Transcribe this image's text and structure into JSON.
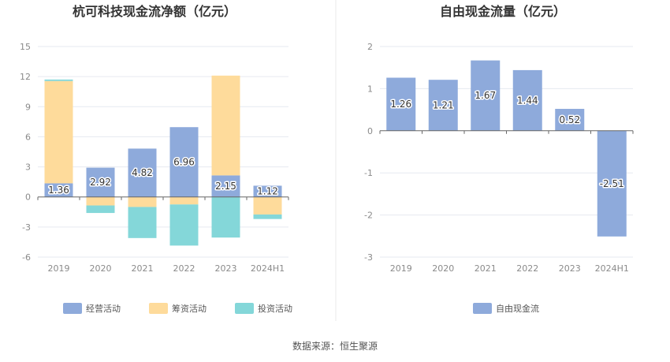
{
  "chart_data": [
    {
      "type": "bar",
      "stacked": true,
      "title": "杭可科技现金流净额（亿元）",
      "categories": [
        "2019",
        "2020",
        "2021",
        "2022",
        "2023",
        "2024H1"
      ],
      "ylim": [
        -6,
        15
      ],
      "yticks": [
        -6,
        -3,
        0,
        3,
        6,
        9,
        12,
        15
      ],
      "grid": true,
      "legend_position": "bottom",
      "series": [
        {
          "name": "经营活动",
          "color": "#8eaadb",
          "values": [
            1.36,
            2.92,
            4.82,
            6.96,
            2.15,
            1.12
          ],
          "show_labels": true
        },
        {
          "name": "筹资活动",
          "color": "#fedb9b",
          "values": [
            10.2,
            -0.85,
            -1.0,
            -0.75,
            9.95,
            -1.75
          ],
          "show_labels": false
        },
        {
          "name": "投资活动",
          "color": "#84d7d9",
          "values": [
            0.15,
            -0.75,
            -3.1,
            -4.1,
            -4.05,
            -0.45
          ],
          "show_labels": false
        }
      ]
    },
    {
      "type": "bar",
      "title": "自由现金流量（亿元）",
      "categories": [
        "2019",
        "2020",
        "2021",
        "2022",
        "2023",
        "2024H1"
      ],
      "ylim": [
        -3,
        2
      ],
      "yticks": [
        -3,
        -2,
        -1,
        0,
        1,
        2
      ],
      "grid": true,
      "legend_position": "bottom",
      "series": [
        {
          "name": "自由现金流",
          "color": "#8eaadb",
          "values": [
            1.26,
            1.21,
            1.67,
            1.44,
            0.52,
            -2.51
          ],
          "show_labels": true
        }
      ]
    }
  ],
  "source": "数据来源：恒生聚源"
}
